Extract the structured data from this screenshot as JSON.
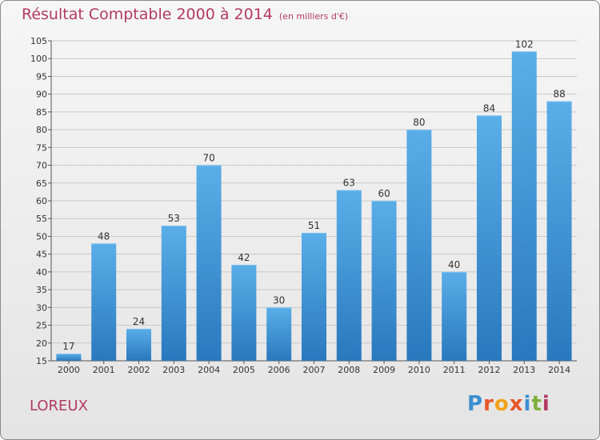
{
  "title": "Résultat Comptable 2000 à 2014",
  "unit_note": "(en milliers d'€)",
  "place_name": "LOREUX",
  "logo_text": "Proxiti",
  "colors": {
    "title": "#b23a63",
    "bar_top": "#5aaee8",
    "bar_bottom": "#2a78bd",
    "grid": "#c8c8c8"
  },
  "chart_data": {
    "type": "bar",
    "title": "Résultat Comptable 2000 à 2014",
    "categories": [
      "2000",
      "2001",
      "2002",
      "2003",
      "2004",
      "2005",
      "2006",
      "2007",
      "2008",
      "2009",
      "2010",
      "2011",
      "2012",
      "2013",
      "2014"
    ],
    "values": [
      17,
      48,
      24,
      53,
      70,
      42,
      30,
      51,
      63,
      60,
      80,
      40,
      84,
      102,
      88
    ],
    "ylim": [
      15,
      105
    ],
    "yticks": [
      15,
      20,
      25,
      30,
      35,
      40,
      45,
      50,
      55,
      60,
      65,
      70,
      75,
      80,
      85,
      90,
      95,
      100,
      105
    ],
    "grid": true,
    "xlabel": "",
    "ylabel": ""
  }
}
